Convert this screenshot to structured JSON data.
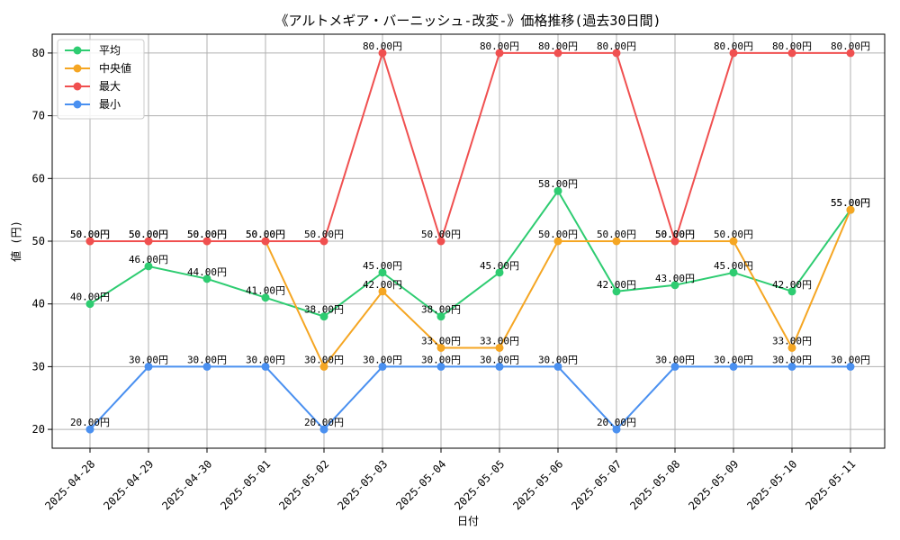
{
  "chart_data": {
    "type": "line",
    "title": "《アルトメギア・バーニッシュ-改変-》価格推移(過去30日間)",
    "xlabel": "日付",
    "ylabel": "値 (円)",
    "ylim": [
      17,
      83
    ],
    "yticks": [
      20,
      30,
      40,
      50,
      60,
      70,
      80
    ],
    "grid": true,
    "legend_position": "top-left",
    "categories": [
      "2025-04-28",
      "2025-04-29",
      "2025-04-30",
      "2025-05-01",
      "2025-05-02",
      "2025-05-03",
      "2025-05-04",
      "2025-05-05",
      "2025-05-06",
      "2025-05-07",
      "2025-05-08",
      "2025-05-09",
      "2025-05-10",
      "2025-05-11"
    ],
    "value_suffix": "円",
    "series": [
      {
        "name": "平均",
        "color": "#2ecc71",
        "values": [
          40,
          46,
          44,
          41,
          38,
          45,
          38,
          45,
          58,
          42,
          43,
          45,
          42,
          55
        ]
      },
      {
        "name": "中央値",
        "color": "#f5a623",
        "values": [
          50,
          50,
          50,
          50,
          30,
          42,
          33,
          33,
          50,
          50,
          50,
          50,
          33,
          55
        ]
      },
      {
        "name": "最大",
        "color": "#f05050",
        "values": [
          50,
          50,
          50,
          50,
          50,
          80,
          50,
          80,
          80,
          80,
          50,
          80,
          80,
          80
        ]
      },
      {
        "name": "最小",
        "color": "#4a90f0",
        "values": [
          20,
          30,
          30,
          30,
          20,
          30,
          30,
          30,
          30,
          20,
          30,
          30,
          30,
          30
        ]
      }
    ]
  }
}
